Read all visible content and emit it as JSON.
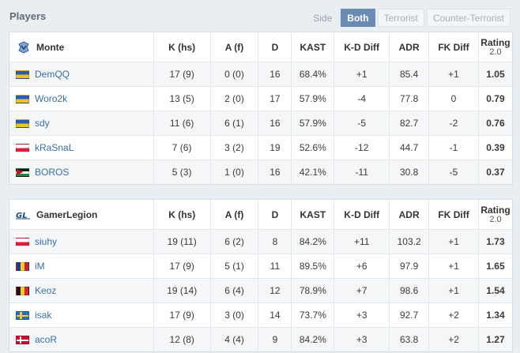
{
  "section_title": "Players",
  "filters": {
    "side_label": "Side",
    "buttons": [
      "Both",
      "Terrorist",
      "Counter-Terrorist"
    ],
    "active": "Both"
  },
  "columns": {
    "k": "K (hs)",
    "a": "A (f)",
    "d": "D",
    "kast": "KAST",
    "kd": "K-D Diff",
    "adr": "ADR",
    "fk": "FK Diff",
    "rating": "Rating",
    "rating_sub": "2.0"
  },
  "teams": [
    {
      "name": "Monte",
      "logo_icon": "monte-logo-icon",
      "players": [
        {
          "name": "DemQQ",
          "flag": "ua",
          "k": "17 (9)",
          "a": "0 (0)",
          "d": "16",
          "kast": "68.4%",
          "kd": "+1",
          "adr": "85.4",
          "fk": "+1",
          "rating": "1.05"
        },
        {
          "name": "Woro2k",
          "flag": "ua",
          "k": "13 (5)",
          "a": "2 (0)",
          "d": "17",
          "kast": "57.9%",
          "kd": "-4",
          "adr": "77.8",
          "fk": "0",
          "rating": "0.79"
        },
        {
          "name": "sdy",
          "flag": "ua",
          "k": "11 (6)",
          "a": "6 (1)",
          "d": "16",
          "kast": "57.9%",
          "kd": "-5",
          "adr": "82.7",
          "fk": "-2",
          "rating": "0.76"
        },
        {
          "name": "kRaSnaL",
          "flag": "pl",
          "k": "7 (6)",
          "a": "3 (2)",
          "d": "19",
          "kast": "52.6%",
          "kd": "-12",
          "adr": "44.7",
          "fk": "-1",
          "rating": "0.39"
        },
        {
          "name": "BOROS",
          "flag": "jo",
          "k": "5 (3)",
          "a": "1 (0)",
          "d": "16",
          "kast": "42.1%",
          "kd": "-11",
          "adr": "30.8",
          "fk": "-5",
          "rating": "0.37"
        }
      ]
    },
    {
      "name": "GamerLegion",
      "logo_icon": "gamerlegion-logo-icon",
      "players": [
        {
          "name": "siuhy",
          "flag": "pl",
          "k": "19 (11)",
          "a": "6 (2)",
          "d": "8",
          "kast": "84.2%",
          "kd": "+11",
          "adr": "103.2",
          "fk": "+1",
          "rating": "1.73"
        },
        {
          "name": "iM",
          "flag": "ro",
          "k": "17 (9)",
          "a": "5 (1)",
          "d": "11",
          "kast": "89.5%",
          "kd": "+6",
          "adr": "97.9",
          "fk": "+1",
          "rating": "1.65"
        },
        {
          "name": "Keoz",
          "flag": "be",
          "k": "19 (14)",
          "a": "6 (4)",
          "d": "12",
          "kast": "78.9%",
          "kd": "+7",
          "adr": "98.6",
          "fk": "+1",
          "rating": "1.54"
        },
        {
          "name": "isak",
          "flag": "se",
          "k": "17 (9)",
          "a": "3 (0)",
          "d": "14",
          "kast": "73.7%",
          "kd": "+3",
          "adr": "92.7",
          "fk": "+2",
          "rating": "1.34"
        },
        {
          "name": "acoR",
          "flag": "dk",
          "k": "12 (8)",
          "a": "4 (4)",
          "d": "9",
          "kast": "84.2%",
          "kd": "+3",
          "adr": "63.8",
          "fk": "+2",
          "rating": "1.27"
        }
      ]
    }
  ],
  "colors": {
    "positive": "#2c9d2c",
    "negative": "#d93333",
    "rating_good": "#3aa83a",
    "rating_bad": "#d12a2a",
    "link": "#3b6fa5",
    "active_filter": "#6c8bb2"
  }
}
